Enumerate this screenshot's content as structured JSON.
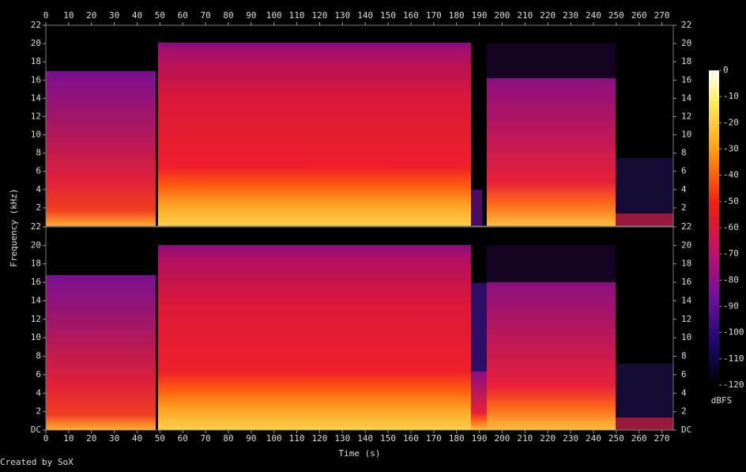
{
  "chart_data": {
    "type": "spectrogram",
    "x_label": "Time (s)",
    "y_label": "Frequency (kHz)",
    "xlim": [
      0,
      275
    ],
    "xticks": [
      0,
      10,
      20,
      30,
      40,
      50,
      60,
      70,
      80,
      90,
      100,
      110,
      120,
      130,
      140,
      150,
      160,
      170,
      180,
      190,
      200,
      210,
      220,
      230,
      240,
      250,
      260,
      270
    ],
    "channels": [
      {
        "ylim": [
          0,
          22
        ],
        "yticks": [
          2,
          4,
          6,
          8,
          10,
          12,
          14,
          16,
          18,
          20,
          22
        ]
      },
      {
        "ylim": [
          0,
          22
        ],
        "yticks": [
          {
            "value": 0,
            "label": "DC"
          },
          2,
          4,
          6,
          8,
          10,
          12,
          14,
          16,
          18,
          20,
          22
        ]
      }
    ],
    "colorbar": {
      "label": "dBFS",
      "lim": [
        -120,
        0
      ],
      "ticks": [
        0,
        -10,
        -20,
        -30,
        -40,
        -50,
        -60,
        -70,
        -80,
        -90,
        -100,
        -110,
        -120
      ]
    },
    "credit": "Created by SoX"
  }
}
